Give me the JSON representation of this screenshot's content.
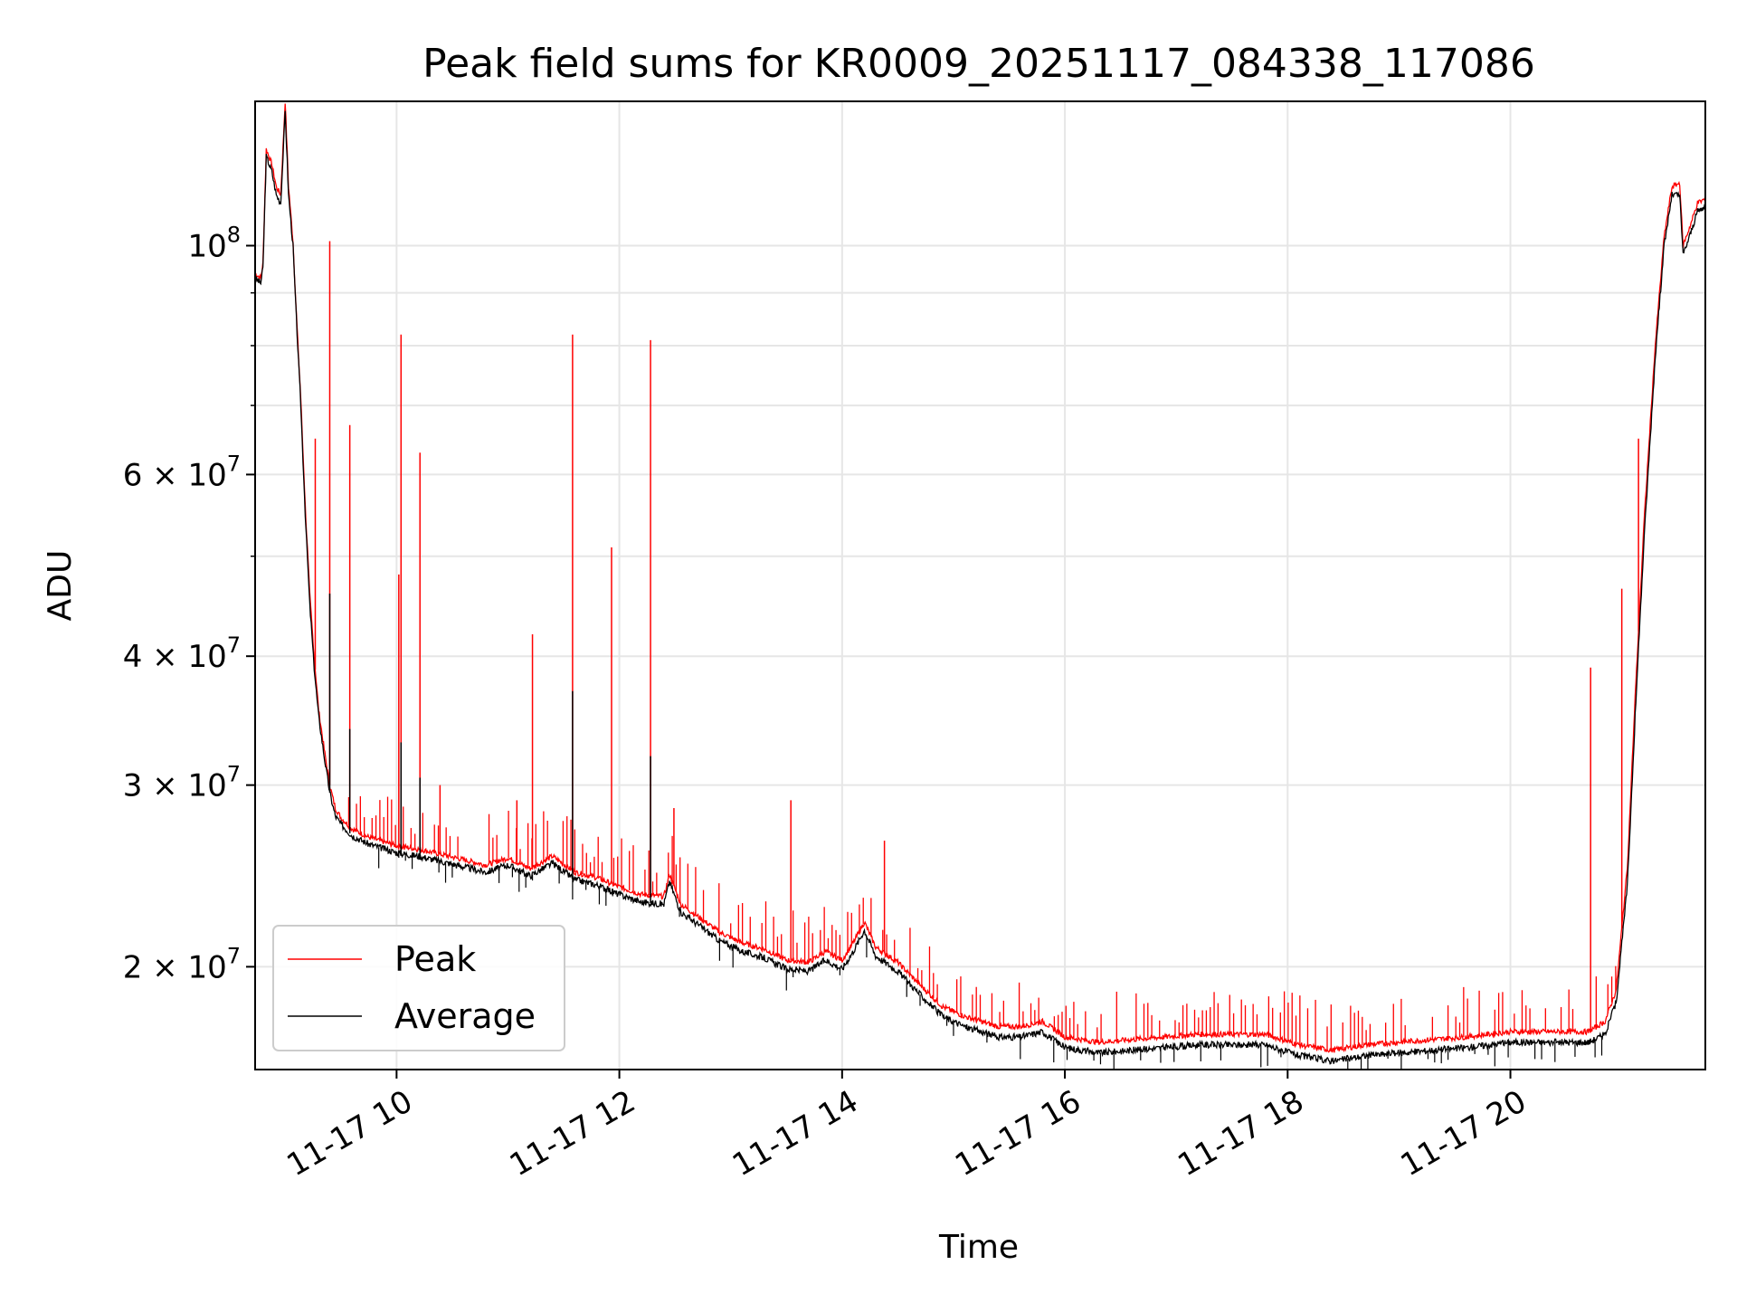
{
  "chart_data": {
    "type": "line",
    "title": "Peak field sums for KR0009_20251117_084338_117086",
    "xlabel": "Time",
    "ylabel": "ADU",
    "yscale": "log",
    "ylim": [
      15900000,
      138000000
    ],
    "xlim_hours": [
      8.73,
      21.75
    ],
    "grid": true,
    "legend_position": "lower-left",
    "x_ticks": [
      {
        "hour": 10,
        "label": "11-17 10"
      },
      {
        "hour": 12,
        "label": "11-17 12"
      },
      {
        "hour": 14,
        "label": "11-17 14"
      },
      {
        "hour": 16,
        "label": "11-17 16"
      },
      {
        "hour": 18,
        "label": "11-17 18"
      },
      {
        "hour": 20,
        "label": "11-17 20"
      }
    ],
    "y_ticks": [
      {
        "value": 100000000,
        "base": "10",
        "exp": "8"
      },
      {
        "value": 60000000,
        "base": "6 × 10",
        "exp": "7"
      },
      {
        "value": 40000000,
        "base": "4 × 10",
        "exp": "7"
      },
      {
        "value": 30000000,
        "base": "3 × 10",
        "exp": "7"
      },
      {
        "value": 20000000,
        "base": "2 × 10",
        "exp": "7"
      }
    ],
    "y_minor_ticks": [
      50000000,
      70000000,
      80000000,
      90000000
    ],
    "series": [
      {
        "name": "Average",
        "color": "#000000",
        "points": [
          [
            8.73,
            93000000
          ],
          [
            8.78,
            92000000
          ],
          [
            8.8,
            95000000
          ],
          [
            8.83,
            122000000
          ],
          [
            8.88,
            118000000
          ],
          [
            8.92,
            112000000
          ],
          [
            8.96,
            110000000
          ],
          [
            9.0,
            135000000
          ],
          [
            9.03,
            112000000
          ],
          [
            9.07,
            100000000
          ],
          [
            9.1,
            85000000
          ],
          [
            9.14,
            70000000
          ],
          [
            9.18,
            55000000
          ],
          [
            9.22,
            45000000
          ],
          [
            9.26,
            39000000
          ],
          [
            9.3,
            35000000
          ],
          [
            9.35,
            32000000
          ],
          [
            9.4,
            29500000
          ],
          [
            9.45,
            28000000
          ],
          [
            9.5,
            27500000
          ],
          [
            9.6,
            26800000
          ],
          [
            9.75,
            26300000
          ],
          [
            10.0,
            25800000
          ],
          [
            10.2,
            25600000
          ],
          [
            10.4,
            25300000
          ],
          [
            10.6,
            25000000
          ],
          [
            10.8,
            24700000
          ],
          [
            11.0,
            25100000
          ],
          [
            11.2,
            24500000
          ],
          [
            11.4,
            25200000
          ],
          [
            11.6,
            24300000
          ],
          [
            11.8,
            24000000
          ],
          [
            12.0,
            23500000
          ],
          [
            12.2,
            23100000
          ],
          [
            12.4,
            23000000
          ],
          [
            12.45,
            24200000
          ],
          [
            12.55,
            22600000
          ],
          [
            12.7,
            22000000
          ],
          [
            12.9,
            21200000
          ],
          [
            13.1,
            20700000
          ],
          [
            13.3,
            20400000
          ],
          [
            13.5,
            19900000
          ],
          [
            13.7,
            19800000
          ],
          [
            13.85,
            20300000
          ],
          [
            14.0,
            19900000
          ],
          [
            14.1,
            20700000
          ],
          [
            14.2,
            21700000
          ],
          [
            14.3,
            20500000
          ],
          [
            14.5,
            19800000
          ],
          [
            14.7,
            18800000
          ],
          [
            14.9,
            17900000
          ],
          [
            15.1,
            17500000
          ],
          [
            15.4,
            17100000
          ],
          [
            15.6,
            17100000
          ],
          [
            15.8,
            17300000
          ],
          [
            16.0,
            16700000
          ],
          [
            16.3,
            16500000
          ],
          [
            16.6,
            16600000
          ],
          [
            16.9,
            16700000
          ],
          [
            17.2,
            16800000
          ],
          [
            17.5,
            16800000
          ],
          [
            17.8,
            16800000
          ],
          [
            18.1,
            16400000
          ],
          [
            18.4,
            16200000
          ],
          [
            18.7,
            16400000
          ],
          [
            19.0,
            16500000
          ],
          [
            19.3,
            16600000
          ],
          [
            19.6,
            16700000
          ],
          [
            20.0,
            16900000
          ],
          [
            20.4,
            16900000
          ],
          [
            20.7,
            16900000
          ],
          [
            20.85,
            17200000
          ],
          [
            20.95,
            18500000
          ],
          [
            21.05,
            24000000
          ],
          [
            21.12,
            35000000
          ],
          [
            21.2,
            52000000
          ],
          [
            21.3,
            78000000
          ],
          [
            21.38,
            100000000
          ],
          [
            21.45,
            112000000
          ],
          [
            21.52,
            112000000
          ],
          [
            21.55,
            98000000
          ],
          [
            21.62,
            103000000
          ],
          [
            21.68,
            108000000
          ],
          [
            21.75,
            109000000
          ]
        ]
      },
      {
        "name": "Peak",
        "color": "#ff0000",
        "points": [
          [
            8.73,
            94000000
          ],
          [
            8.78,
            93000000
          ],
          [
            8.8,
            96000000
          ],
          [
            8.83,
            124000000
          ],
          [
            8.88,
            120000000
          ],
          [
            8.92,
            114000000
          ],
          [
            8.96,
            112000000
          ],
          [
            9.0,
            138000000
          ],
          [
            9.03,
            114000000
          ],
          [
            9.07,
            101000000
          ],
          [
            9.1,
            86000000
          ],
          [
            9.14,
            71000000
          ],
          [
            9.18,
            56000000
          ],
          [
            9.22,
            46000000
          ],
          [
            9.26,
            40000000
          ],
          [
            9.3,
            35500000
          ],
          [
            9.35,
            32500000
          ],
          [
            9.4,
            30000000
          ],
          [
            9.45,
            28500000
          ],
          [
            9.5,
            27900000
          ],
          [
            9.6,
            27200000
          ],
          [
            9.75,
            26700000
          ],
          [
            10.0,
            26200000
          ],
          [
            10.2,
            26000000
          ],
          [
            10.4,
            25700000
          ],
          [
            10.6,
            25400000
          ],
          [
            10.8,
            25100000
          ],
          [
            11.0,
            25500000
          ],
          [
            11.2,
            24900000
          ],
          [
            11.4,
            25600000
          ],
          [
            11.6,
            24700000
          ],
          [
            11.8,
            24400000
          ],
          [
            12.0,
            23900000
          ],
          [
            12.2,
            23500000
          ],
          [
            12.4,
            23400000
          ],
          [
            12.45,
            24600000
          ],
          [
            12.55,
            23000000
          ],
          [
            12.7,
            22400000
          ],
          [
            12.9,
            21600000
          ],
          [
            13.1,
            21100000
          ],
          [
            13.3,
            20800000
          ],
          [
            13.5,
            20300000
          ],
          [
            13.7,
            20200000
          ],
          [
            13.85,
            20700000
          ],
          [
            14.0,
            20300000
          ],
          [
            14.1,
            21100000
          ],
          [
            14.2,
            22100000
          ],
          [
            14.3,
            20900000
          ],
          [
            14.5,
            20200000
          ],
          [
            14.7,
            19200000
          ],
          [
            14.9,
            18300000
          ],
          [
            15.1,
            17900000
          ],
          [
            15.4,
            17500000
          ],
          [
            15.6,
            17500000
          ],
          [
            15.8,
            17700000
          ],
          [
            16.0,
            17100000
          ],
          [
            16.3,
            16900000
          ],
          [
            16.6,
            17000000
          ],
          [
            16.9,
            17100000
          ],
          [
            17.2,
            17200000
          ],
          [
            17.5,
            17200000
          ],
          [
            17.8,
            17200000
          ],
          [
            18.1,
            16800000
          ],
          [
            18.4,
            16600000
          ],
          [
            18.7,
            16800000
          ],
          [
            19.0,
            16900000
          ],
          [
            19.3,
            17000000
          ],
          [
            19.6,
            17100000
          ],
          [
            20.0,
            17300000
          ],
          [
            20.4,
            17300000
          ],
          [
            20.7,
            17300000
          ],
          [
            20.85,
            17700000
          ],
          [
            20.95,
            19000000
          ],
          [
            21.05,
            25000000
          ],
          [
            21.12,
            36500000
          ],
          [
            21.2,
            54000000
          ],
          [
            21.3,
            80000000
          ],
          [
            21.38,
            102000000
          ],
          [
            21.45,
            114000000
          ],
          [
            21.52,
            115000000
          ],
          [
            21.55,
            100000000
          ],
          [
            21.62,
            105000000
          ],
          [
            21.68,
            110000000
          ],
          [
            21.75,
            111000000
          ]
        ]
      }
    ],
    "peak_spikes": [
      [
        9.27,
        65000000
      ],
      [
        9.4,
        101000000
      ],
      [
        9.58,
        67000000
      ],
      [
        10.04,
        82000000
      ],
      [
        10.02,
        48000000
      ],
      [
        10.21,
        63000000
      ],
      [
        10.39,
        30000000
      ],
      [
        11.08,
        29000000
      ],
      [
        11.22,
        42000000
      ],
      [
        11.58,
        82000000
      ],
      [
        11.93,
        51000000
      ],
      [
        12.28,
        81000000
      ],
      [
        12.49,
        28500000
      ],
      [
        13.54,
        29000000
      ],
      [
        14.38,
        26500000
      ],
      [
        20.72,
        39000000
      ],
      [
        21.0,
        46500000
      ],
      [
        21.15,
        65000000
      ]
    ],
    "average_spikes": [
      [
        9.4,
        46000000
      ],
      [
        9.58,
        34000000
      ],
      [
        10.04,
        33000000
      ],
      [
        10.21,
        30500000
      ],
      [
        11.58,
        37000000
      ],
      [
        12.28,
        32000000
      ]
    ]
  }
}
